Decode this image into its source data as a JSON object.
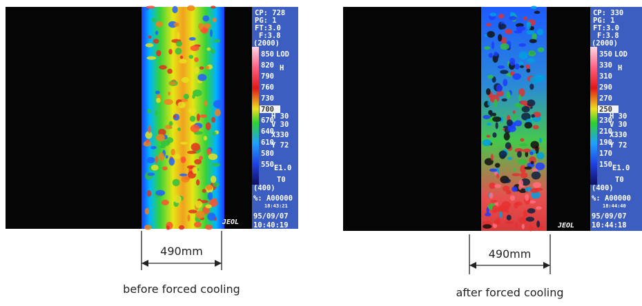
{
  "panels": [
    {
      "sidebar": {
        "cp": "CP: 728",
        "pg": "PG:  1",
        "ft": "FT:3.0",
        "f": "F:3.8",
        "range_max": "(2000)",
        "scale": [
          "850",
          "820",
          "790",
          "760",
          "730",
          "700",
          "670",
          "640",
          "610",
          "580",
          "550"
        ],
        "range_min": "(400)",
        "mode": "LOD",
        "mode_sub": "H",
        "h": "H 30",
        "v": "V 30",
        "x": "X330",
        "y": "Y 72",
        "e": "E1.0",
        "t": "T0",
        "file": "%: A00000",
        "file_time": "18:43:21",
        "date": "95/09/07",
        "time": "10:40:19"
      },
      "logo": "JEOL",
      "dimension": "490mm",
      "caption": "before forced cooling"
    },
    {
      "sidebar": {
        "cp": "CP: 330",
        "pg": "PG:  1",
        "ft": "FT:3.0",
        "f": "F:3.8",
        "range_max": "(2000)",
        "scale": [
          "350",
          "330",
          "310",
          "290",
          "270",
          "250",
          "230",
          "210",
          "190",
          "170",
          "150"
        ],
        "range_min": "(400)",
        "mode": "LOD",
        "mode_sub": "H",
        "h": "H 30",
        "v": "V 30",
        "x": "X330",
        "y": "Y 72",
        "e": "E1.0",
        "t": "T0",
        "file": "%: A00000",
        "file_time": "18:44:40",
        "date": "95/09/07",
        "time": "10:44:18"
      },
      "logo": "JEOL",
      "dimension": "490mm",
      "caption": "after forced cooling"
    }
  ]
}
